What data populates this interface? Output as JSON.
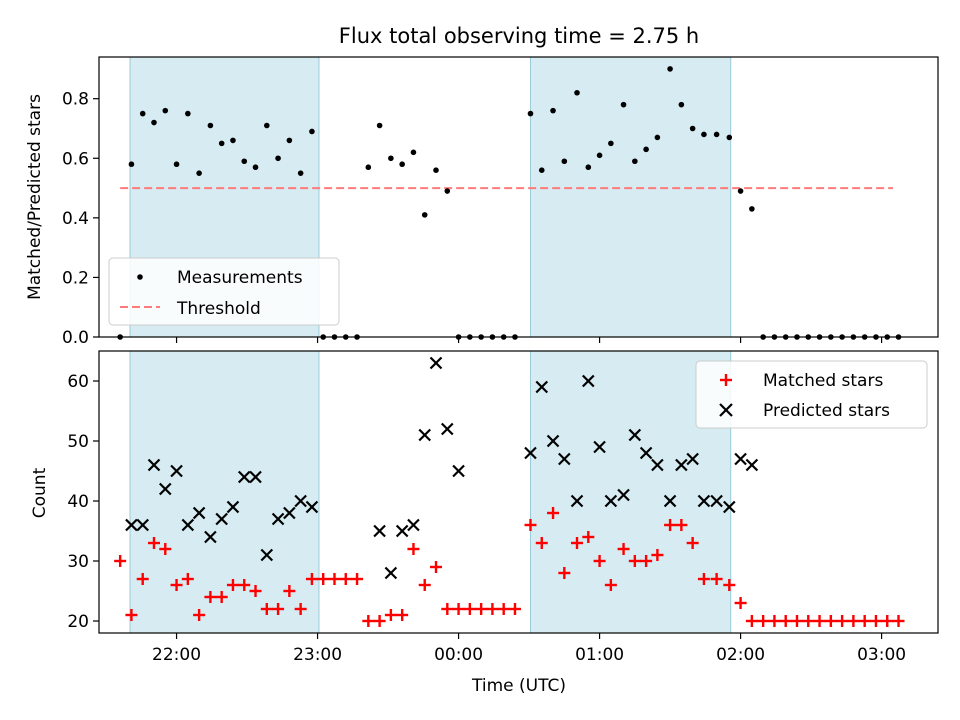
{
  "chart_data": [
    {
      "type": "scatter",
      "title": "Flux total observing time = 2.75 h",
      "xlabel": "",
      "ylabel": "Matched/Predicted stars",
      "xlim": [
        -2.55,
        3.4
      ],
      "ylim": [
        0,
        0.94
      ],
      "yticks": [
        0.0,
        0.2,
        0.4,
        0.6,
        0.8
      ],
      "ytick_labels": [
        "0.0",
        "0.2",
        "0.4",
        "0.6",
        "0.8"
      ],
      "xticks": [
        -2,
        -1,
        0,
        1,
        2,
        3
      ],
      "shaded_intervals": [
        [
          -2.33,
          -0.99
        ],
        [
          0.51,
          1.93
        ]
      ],
      "grid": false,
      "legend_placement": "lower-left",
      "legend": [
        "Measurements",
        "Threshold"
      ],
      "threshold": {
        "name": "Threshold",
        "y": 0.5,
        "x_range": [
          -2.4,
          3.08
        ],
        "color": "#ff7a7a"
      },
      "series": [
        {
          "name": "Measurements",
          "color": "#000000",
          "x": [
            -2.4,
            -2.32,
            -2.24,
            -2.16,
            -2.08,
            -2.0,
            -1.92,
            -1.84,
            -1.76,
            -1.68,
            -1.6,
            -1.52,
            -1.44,
            -1.36,
            -1.28,
            -1.2,
            -1.12,
            -1.04,
            -0.96,
            -0.88,
            -0.8,
            -0.72,
            -0.64,
            -0.56,
            -0.48,
            -0.4,
            -0.32,
            -0.24,
            -0.16,
            -0.08,
            0.0,
            0.08,
            0.16,
            0.24,
            0.32,
            0.4,
            0.51,
            0.59,
            0.67,
            0.75,
            0.84,
            0.92,
            1.0,
            1.08,
            1.17,
            1.25,
            1.33,
            1.41,
            1.5,
            1.58,
            1.66,
            1.74,
            1.83,
            1.92,
            2.0,
            2.08,
            2.16,
            2.24,
            2.32,
            2.4,
            2.48,
            2.56,
            2.64,
            2.72,
            2.8,
            2.88,
            2.96,
            3.04,
            3.12
          ],
          "y": [
            0.0,
            0.58,
            0.75,
            0.72,
            0.76,
            0.58,
            0.75,
            0.55,
            0.71,
            0.65,
            0.66,
            0.59,
            0.57,
            0.71,
            0.6,
            0.66,
            0.55,
            0.69,
            0.0,
            0.0,
            0.0,
            0.0,
            0.57,
            0.71,
            0.6,
            0.58,
            0.62,
            0.41,
            0.56,
            0.49,
            0.0,
            0.0,
            0.0,
            0.0,
            0.0,
            0.0,
            0.75,
            0.56,
            0.76,
            0.59,
            0.82,
            0.57,
            0.61,
            0.65,
            0.78,
            0.59,
            0.63,
            0.67,
            0.9,
            0.78,
            0.7,
            0.68,
            0.68,
            0.67,
            0.49,
            0.43,
            0.0,
            0.0,
            0.0,
            0.0,
            0.0,
            0.0,
            0.0,
            0.0,
            0.0,
            0.0,
            0.0,
            0.0,
            0.0
          ]
        }
      ]
    },
    {
      "type": "scatter",
      "title": "",
      "xlabel": "Time (UTC)",
      "ylabel": "Count",
      "xlim": [
        -2.55,
        3.4
      ],
      "ylim": [
        18,
        65
      ],
      "yticks": [
        20,
        30,
        40,
        50,
        60
      ],
      "ytick_labels": [
        "20",
        "30",
        "40",
        "50",
        "60"
      ],
      "xticks": [
        -2,
        -1,
        0,
        1,
        2,
        3
      ],
      "xtick_labels": [
        "22:00",
        "23:00",
        "00:00",
        "01:00",
        "02:00",
        "03:00"
      ],
      "shaded_intervals": [
        [
          -2.33,
          -0.99
        ],
        [
          0.51,
          1.93
        ]
      ],
      "grid": false,
      "legend_placement": "top-right",
      "legend": [
        "Matched stars",
        "Predicted stars"
      ],
      "series": [
        {
          "name": "Matched stars",
          "color": "#ff0000",
          "marker": "plus",
          "x": [
            -2.4,
            -2.32,
            -2.24,
            -2.16,
            -2.08,
            -2.0,
            -1.92,
            -1.84,
            -1.76,
            -1.68,
            -1.6,
            -1.52,
            -1.44,
            -1.36,
            -1.28,
            -1.2,
            -1.12,
            -1.04,
            -0.96,
            -0.88,
            -0.8,
            -0.72,
            -0.64,
            -0.56,
            -0.48,
            -0.4,
            -0.32,
            -0.24,
            -0.16,
            -0.08,
            0.0,
            0.08,
            0.16,
            0.24,
            0.32,
            0.4,
            0.51,
            0.59,
            0.67,
            0.75,
            0.84,
            0.92,
            1.0,
            1.08,
            1.17,
            1.25,
            1.33,
            1.41,
            1.5,
            1.58,
            1.66,
            1.74,
            1.83,
            1.92,
            2.0,
            2.08,
            2.16,
            2.24,
            2.32,
            2.4,
            2.48,
            2.56,
            2.64,
            2.72,
            2.8,
            2.88,
            2.96,
            3.04,
            3.12
          ],
          "y": [
            30,
            21,
            27,
            33,
            32,
            26,
            27,
            21,
            24,
            24,
            26,
            26,
            25,
            22,
            22,
            25,
            22,
            27,
            27,
            27,
            27,
            27,
            20,
            20,
            21,
            21,
            32,
            26,
            29,
            22,
            22,
            22,
            22,
            22,
            22,
            22,
            36,
            33,
            38,
            28,
            33,
            34,
            30,
            26,
            32,
            30,
            30,
            31,
            36,
            36,
            33,
            27,
            27,
            26,
            23,
            20,
            20,
            20,
            20,
            20,
            20,
            20,
            20,
            20,
            20,
            20,
            20,
            20,
            20
          ]
        },
        {
          "name": "Predicted stars",
          "color": "#000000",
          "marker": "x",
          "x": [
            -2.32,
            -2.24,
            -2.16,
            -2.08,
            -2.0,
            -1.92,
            -1.84,
            -1.76,
            -1.68,
            -1.6,
            -1.52,
            -1.44,
            -1.36,
            -1.28,
            -1.2,
            -1.12,
            -1.04,
            -0.56,
            -0.48,
            -0.4,
            -0.32,
            -0.24,
            -0.16,
            -0.08,
            0.0,
            0.51,
            0.59,
            0.67,
            0.75,
            0.84,
            0.92,
            1.0,
            1.08,
            1.17,
            1.25,
            1.33,
            1.41,
            1.5,
            1.58,
            1.66,
            1.74,
            1.83,
            1.92,
            2.0,
            2.08
          ],
          "y": [
            36,
            36,
            46,
            42,
            45,
            36,
            38,
            34,
            37,
            39,
            44,
            44,
            31,
            37,
            38,
            40,
            39,
            35,
            28,
            35,
            36,
            51,
            63,
            52,
            45,
            48,
            59,
            50,
            47,
            40,
            60,
            49,
            40,
            41,
            51,
            48,
            46,
            40,
            46,
            47,
            40,
            40,
            39,
            47,
            46
          ]
        }
      ]
    }
  ]
}
